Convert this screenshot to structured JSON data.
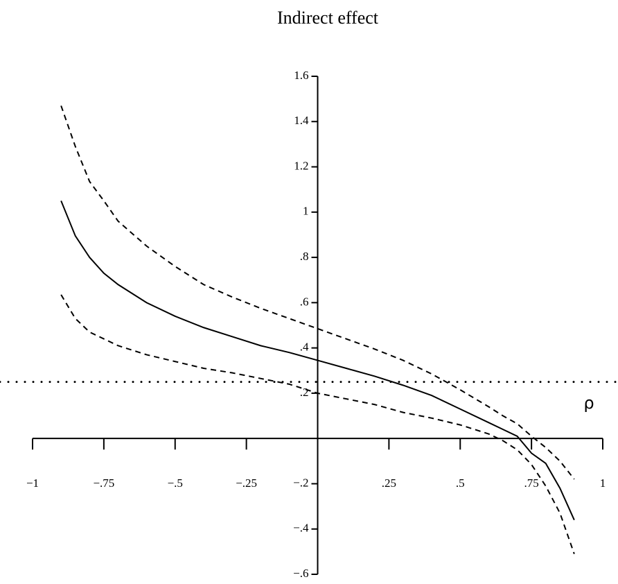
{
  "chart_data": {
    "type": "line",
    "title": "Indirect effect",
    "x_label": "ρ",
    "x": [
      -0.9,
      -0.85,
      -0.8,
      -0.75,
      -0.7,
      -0.6,
      -0.5,
      -0.4,
      -0.3,
      -0.2,
      -0.1,
      0,
      0.1,
      0.2,
      0.3,
      0.4,
      0.5,
      0.6,
      0.65,
      0.7,
      0.75,
      0.8,
      0.85,
      0.9
    ],
    "series": [
      {
        "color": "#000000",
        "dashed": false,
        "values": [
          1.05,
          0.895,
          0.8,
          0.73,
          0.68,
          0.6,
          0.54,
          0.49,
          0.45,
          0.41,
          0.38,
          0.345,
          0.31,
          0.275,
          0.235,
          0.19,
          0.13,
          0.07,
          0.04,
          0.01,
          -0.065,
          -0.11,
          -0.22,
          -0.36
        ]
      },
      {
        "color": "#000000",
        "dashed": true,
        "values": [
          1.47,
          1.29,
          1.135,
          1.05,
          0.96,
          0.85,
          0.76,
          0.68,
          0.625,
          0.575,
          0.53,
          0.485,
          0.44,
          0.395,
          0.345,
          0.285,
          0.215,
          0.14,
          0.1,
          0.065,
          0.01,
          -0.04,
          -0.1,
          -0.18
        ]
      },
      {
        "color": "#000000",
        "dashed": true,
        "values": [
          0.635,
          0.53,
          0.47,
          0.44,
          0.41,
          0.37,
          0.34,
          0.31,
          0.29,
          0.265,
          0.24,
          0.2,
          0.175,
          0.15,
          0.115,
          0.09,
          0.06,
          0.02,
          -0.01,
          -0.05,
          -0.115,
          -0.21,
          -0.33,
          -0.51
        ]
      }
    ],
    "reference_line": 0.25,
    "xlim": [
      -1,
      1
    ],
    "ylim": [
      -0.6,
      1.6
    ],
    "xticks": [
      {
        "value": -1,
        "label": "−1"
      },
      {
        "value": -0.75,
        "label": "−.75"
      },
      {
        "value": -0.5,
        "label": "−.5"
      },
      {
        "value": -0.25,
        "label": "−.25"
      },
      {
        "value": 0.25,
        "label": ".25"
      },
      {
        "value": 0.5,
        "label": ".5"
      },
      {
        "value": 0.75,
        "label": ".75"
      },
      1
    ],
    "yticks": [
      {
        "value": -0.6,
        "label": "−.6"
      },
      {
        "value": -0.4,
        "label": "−.4"
      },
      {
        "value": -0.2,
        "label": "−.2"
      },
      {
        "value": 0.2,
        "label": ".2"
      },
      {
        "value": 0.4,
        "label": ".4"
      },
      {
        "value": 0.6,
        "label": ".6"
      },
      {
        "value": 0.8,
        "label": ".8"
      },
      1,
      {
        "value": 1.2,
        "label": "1.2"
      },
      {
        "value": 1.4,
        "label": "1.4"
      },
      {
        "value": 1.6,
        "label": "1.6"
      }
    ]
  }
}
